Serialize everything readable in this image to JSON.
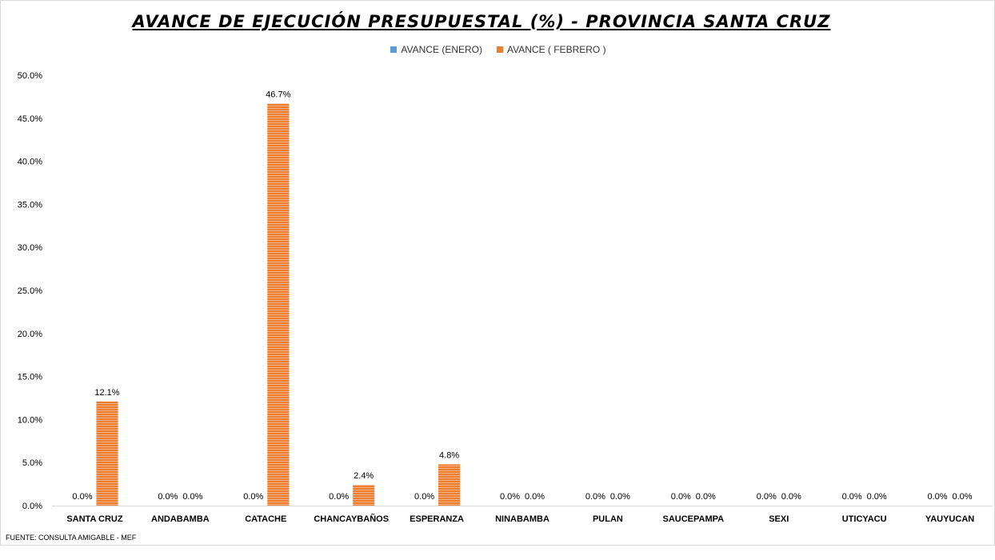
{
  "chart_data": {
    "type": "bar",
    "title": "AVANCE DE EJECUCIÓN PRESUPUESTAL (%) - PROVINCIA SANTA CRUZ",
    "categories": [
      "SANTA CRUZ",
      "ANDABAMBA",
      "CATACHE",
      "CHANCAYBAÑOS",
      "ESPERANZA",
      "NINABAMBA",
      "PULAN",
      "SAUCEPAMPA",
      "SEXI",
      "UTICYACU",
      "YAUYUCAN"
    ],
    "series": [
      {
        "name": "AVANCE (ENERO)",
        "color": "#5b9bd5",
        "values": [
          0,
          0,
          0,
          0,
          0,
          0,
          0,
          0,
          0,
          0,
          0
        ],
        "labels": [
          "0.0%",
          "0.0%",
          "0.0%",
          "0.0%",
          "0.0%",
          "0.0%",
          "0.0%",
          "0.0%",
          "0.0%",
          "0.0%",
          "0.0%"
        ]
      },
      {
        "name": "AVANCE ( FEBRERO )",
        "color": "#ed7d31",
        "values": [
          12.1,
          0,
          46.7,
          2.4,
          4.8,
          0,
          0,
          0,
          0,
          0,
          0
        ],
        "labels": [
          "12.1%",
          "0.0%",
          "46.7%",
          "2.4%",
          "4.8%",
          "0.0%",
          "0.0%",
          "0.0%",
          "0.0%",
          "0.0%",
          "0.0%"
        ]
      }
    ],
    "ylim": [
      0,
      50
    ],
    "yticks": [
      "0.0%",
      "5.0%",
      "10.0%",
      "15.0%",
      "20.0%",
      "25.0%",
      "30.0%",
      "35.0%",
      "40.0%",
      "45.0%",
      "50.0%"
    ],
    "xlabel": "",
    "ylabel": "",
    "grid": false,
    "legend_position": "top"
  },
  "footer": "FUENTE: CONSULTA AMIGABLE - MEF"
}
